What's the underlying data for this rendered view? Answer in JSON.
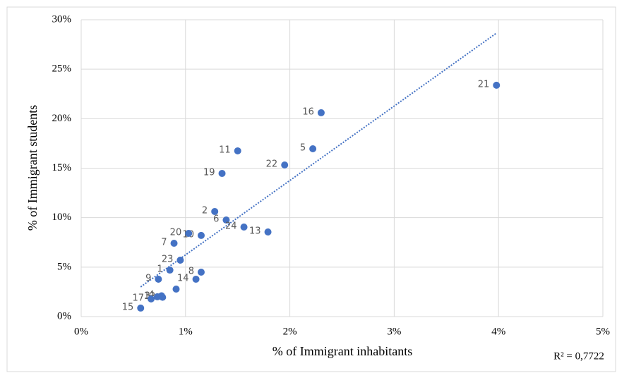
{
  "chart_data": {
    "type": "scatter",
    "x_label": "% of Immigrant inhabitants",
    "y_label": "% of Immigrant students",
    "annotation": "R² = 0,7722",
    "color": "#4472c4",
    "grid": true,
    "xlim": [
      0,
      5
    ],
    "xticks": [
      {
        "value": 0,
        "label": "0%"
      },
      {
        "value": 1,
        "label": "1%"
      },
      {
        "value": 2,
        "label": "2%"
      },
      {
        "value": 3,
        "label": "3%"
      },
      {
        "value": 4,
        "label": "4%"
      },
      {
        "value": 5,
        "label": "5%"
      }
    ],
    "ylim": [
      0,
      30
    ],
    "yticks": [
      {
        "value": 0,
        "label": "0%"
      },
      {
        "value": 5,
        "label": "5%"
      },
      {
        "value": 10,
        "label": "10%"
      },
      {
        "value": 15,
        "label": "15%"
      },
      {
        "value": 20,
        "label": "20%"
      },
      {
        "value": 25,
        "label": "25%"
      },
      {
        "value": 30,
        "label": "30%"
      }
    ],
    "series": [
      {
        "labels": [
          "1",
          "2",
          "3",
          "4",
          "5",
          "6",
          "7",
          "8",
          "9",
          "10",
          "11",
          "12",
          "13",
          "14",
          "15",
          "16",
          "17",
          null,
          "19",
          "20",
          "21",
          "22",
          "23",
          "24"
        ],
        "x": [
          0.85,
          1.28,
          0.73,
          0.77,
          2.22,
          1.39,
          0.89,
          1.15,
          0.74,
          1.15,
          1.5,
          0.78,
          1.79,
          1.1,
          0.57,
          2.3,
          0.67,
          0.91,
          1.35,
          1.03,
          3.98,
          1.95,
          0.95,
          1.56
        ],
        "values": [
          4.7,
          10.62,
          2.0,
          2.1,
          16.96,
          9.76,
          7.41,
          4.49,
          3.78,
          8.2,
          16.75,
          1.95,
          8.55,
          3.78,
          0.86,
          20.6,
          1.78,
          2.78,
          14.47,
          8.41,
          23.38,
          15.32,
          5.7,
          9.05
        ]
      }
    ],
    "trendline": {
      "x": [
        0.57,
        3.98
      ],
      "values": [
        3.0,
        28.65
      ]
    }
  }
}
